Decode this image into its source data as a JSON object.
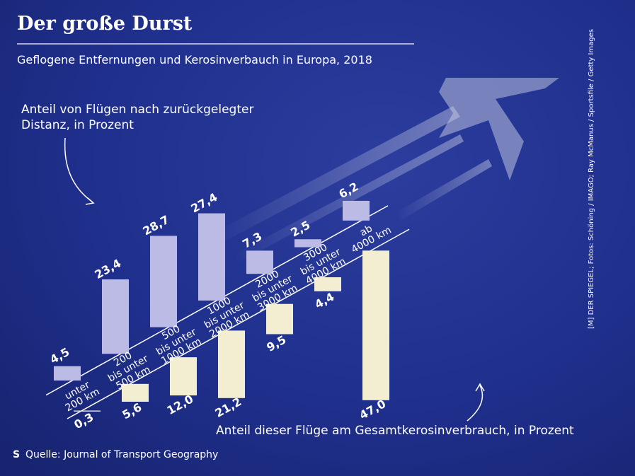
{
  "chart_data": {
    "type": "diverging-bar",
    "title": "Der große Durst",
    "subtitle": "Geflogene Entfernungen und Kerosinverbauch in Europa, 2018",
    "categories": [
      [
        "unter",
        "200 km"
      ],
      [
        "200",
        "bis unter",
        "500 km"
      ],
      [
        "500",
        "bis unter",
        "1000 km"
      ],
      [
        "1000",
        "bis unter",
        "2000 km"
      ],
      [
        "2000",
        "bis unter",
        "3000 km"
      ],
      [
        "3000",
        "bis unter",
        "4000 km"
      ],
      [
        "ab",
        "4000 km"
      ]
    ],
    "series": [
      {
        "name": "Anteil von Flügen nach zurückgelegter Distanz, in Prozent",
        "color": "#bcbbe6",
        "values": [
          4.5,
          23.4,
          28.7,
          27.4,
          7.3,
          2.5,
          6.2
        ],
        "value_labels": [
          "4,5",
          "23,4",
          "28,7",
          "27,4",
          "7,3",
          "2,5",
          "6,2"
        ]
      },
      {
        "name": "Anteil dieser Flüge am Gesamtkerosinverbrauch, in Prozent",
        "color": "#f3eed2",
        "values": [
          0.3,
          5.6,
          12.0,
          21.2,
          9.5,
          4.4,
          47.0
        ],
        "value_labels": [
          "0,3",
          "5,6",
          "12,0",
          "21,2",
          "9,5",
          "4,4",
          "47,0"
        ]
      }
    ],
    "source": "Quelle: Journal of Transport Geography",
    "logo": "S",
    "credit": "[M] DER SPIEGEL; Fotos: Schöning / IMAGO; Ray McManus / Sportsfile / Getty Images"
  }
}
